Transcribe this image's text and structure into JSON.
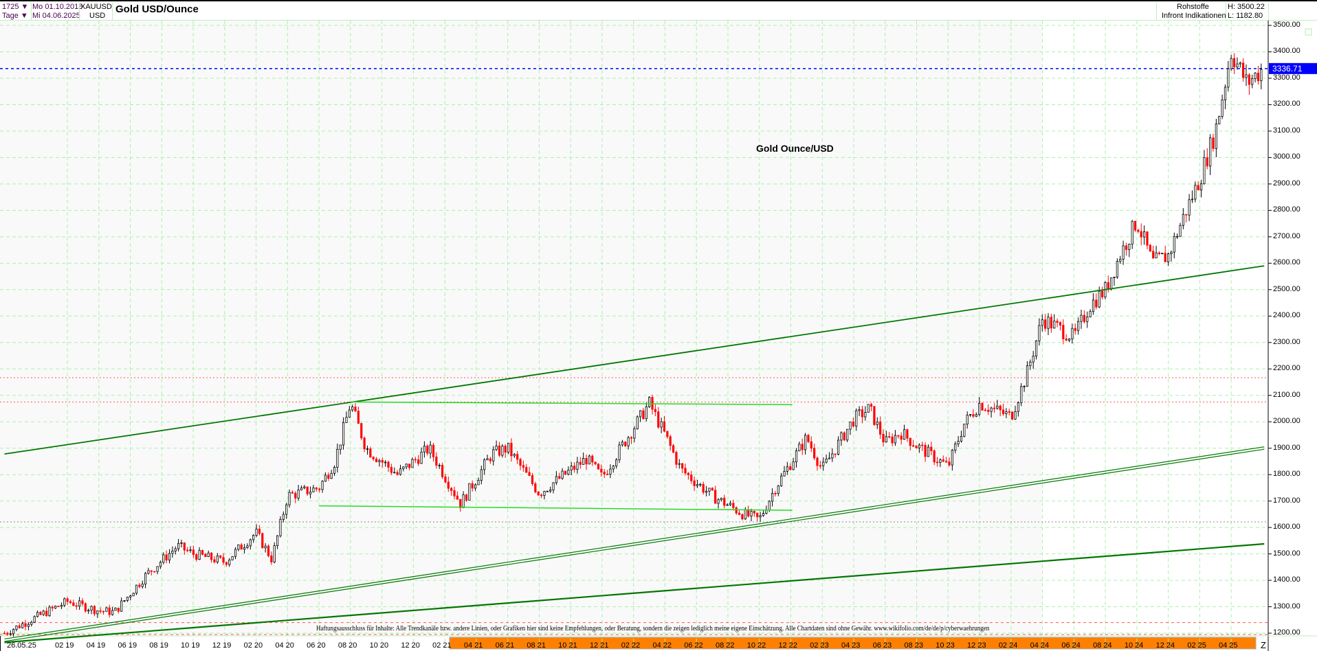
{
  "header": {
    "bars": "1725",
    "period": "Tage",
    "date_from": "Mo 01.10.2018",
    "date_to": "Mi 04.06.2025",
    "symbol": "XAUUSD",
    "currency": "USD",
    "title": "Gold USD/Ounce",
    "category": "Rohstoffe",
    "source": "Infront Indikationen",
    "high": "H: 3500.22",
    "low": "L: 1182.80",
    "dropdown_icon": "triangle-down"
  },
  "annotation": "Gold Ounce/USD",
  "disclaimer": "Haftungsausschluss für Inhalte: Alle Trendkanäle bzw. andere Linien, oder Grafiken hier sind keine Empfehlungen, oder Beratung, sondern die zeigen lediglich meine eigene Einschätzung. Alle Chartdaten sind ohne Gewähr.  www.wikifolio.com/de/de/p/cyberwaehrungen",
  "axis_corner": "Z",
  "colors": {
    "up": "#000000",
    "down": "#ff0000",
    "grid": "#aaf0aa",
    "trend": "#007700",
    "range": "#22dd22",
    "current": "#0000ff",
    "resistance": "#ff5555"
  },
  "chart_data": {
    "type": "candlestick",
    "title": "Gold USD/Ounce",
    "ylim": [
      1190,
      3520
    ],
    "grid": true,
    "y_ticks": [
      "3500.00",
      "3400.00",
      "3300.00",
      "3200.00",
      "3100.00",
      "3000.00",
      "2900.00",
      "2800.00",
      "2700.00",
      "2600.00",
      "2500.00",
      "2400.00",
      "2300.00",
      "2200.00",
      "2100.00",
      "2000.00",
      "1900.00",
      "1800.00",
      "1700.00",
      "1600.00",
      "1500.00",
      "1400.00",
      "1300.00",
      "1200.00"
    ],
    "x_ticks": [
      "26.05.25",
      "02 19",
      "04 19",
      "06 19",
      "08 19",
      "10 19",
      "12 19",
      "02 20",
      "04 20",
      "06 20",
      "08 20",
      "10 20",
      "12 20",
      "02 21",
      "04 21",
      "06 21",
      "08 21",
      "10 21",
      "12 21",
      "02 22",
      "04 22",
      "06 22",
      "08 22",
      "10 22",
      "12 22",
      "02 23",
      "04 23",
      "06 23",
      "08 23",
      "10 23",
      "12 23",
      "02 24",
      "04 24",
      "06 24",
      "08 24",
      "10 24",
      "12 24",
      "02 25",
      "04 25"
    ],
    "current_price": "3336.71",
    "high": 3500.22,
    "low": 1182.8,
    "series": [
      {
        "date": "2018-10",
        "close": 1200
      },
      {
        "date": "2018-12",
        "close": 1260
      },
      {
        "date": "2019-02",
        "close": 1320
      },
      {
        "date": "2019-04",
        "close": 1285
      },
      {
        "date": "2019-05",
        "close": 1280
      },
      {
        "date": "2019-07",
        "close": 1420
      },
      {
        "date": "2019-09",
        "close": 1530
      },
      {
        "date": "2019-10",
        "close": 1500
      },
      {
        "date": "2019-12",
        "close": 1470
      },
      {
        "date": "2020-02",
        "close": 1580
      },
      {
        "date": "2020-03",
        "close": 1480
      },
      {
        "date": "2020-04",
        "close": 1720
      },
      {
        "date": "2020-06",
        "close": 1750
      },
      {
        "date": "2020-07",
        "close": 1850
      },
      {
        "date": "2020-08",
        "close": 2070
      },
      {
        "date": "2020-09",
        "close": 1900
      },
      {
        "date": "2020-11",
        "close": 1800
      },
      {
        "date": "2021-01",
        "close": 1900
      },
      {
        "date": "2021-03",
        "close": 1690
      },
      {
        "date": "2021-05",
        "close": 1880
      },
      {
        "date": "2021-06",
        "close": 1900
      },
      {
        "date": "2021-08",
        "close": 1730
      },
      {
        "date": "2021-11",
        "close": 1860
      },
      {
        "date": "2021-12",
        "close": 1790
      },
      {
        "date": "2022-03",
        "close": 2070
      },
      {
        "date": "2022-04",
        "close": 1950
      },
      {
        "date": "2022-05",
        "close": 1820
      },
      {
        "date": "2022-07",
        "close": 1720
      },
      {
        "date": "2022-09",
        "close": 1650
      },
      {
        "date": "2022-10",
        "close": 1630
      },
      {
        "date": "2022-11",
        "close": 1750
      },
      {
        "date": "2023-01",
        "close": 1940
      },
      {
        "date": "2023-02",
        "close": 1820
      },
      {
        "date": "2023-04",
        "close": 2010
      },
      {
        "date": "2023-05",
        "close": 2050
      },
      {
        "date": "2023-06",
        "close": 1920
      },
      {
        "date": "2023-07",
        "close": 1960
      },
      {
        "date": "2023-08",
        "close": 1910
      },
      {
        "date": "2023-10",
        "close": 1830
      },
      {
        "date": "2023-11",
        "close": 1990
      },
      {
        "date": "2023-12",
        "close": 2070
      },
      {
        "date": "2024-02",
        "close": 2020
      },
      {
        "date": "2024-03",
        "close": 2180
      },
      {
        "date": "2024-04",
        "close": 2390
      },
      {
        "date": "2024-06",
        "close": 2320
      },
      {
        "date": "2024-07",
        "close": 2440
      },
      {
        "date": "2024-08",
        "close": 2500
      },
      {
        "date": "2024-09",
        "close": 2640
      },
      {
        "date": "2024-10",
        "close": 2760
      },
      {
        "date": "2024-11",
        "close": 2600
      },
      {
        "date": "2024-12",
        "close": 2630
      },
      {
        "date": "2025-01",
        "close": 2780
      },
      {
        "date": "2025-02",
        "close": 2920
      },
      {
        "date": "2025-03",
        "close": 3100
      },
      {
        "date": "2025-04",
        "close": 3400
      },
      {
        "date": "2025-05",
        "close": 3280
      },
      {
        "date": "2025-06",
        "close": 3336.71
      }
    ],
    "trendlines": [
      {
        "kind": "upper-channel",
        "from": [
          "2018-10",
          1878
        ],
        "to": [
          "2025-06",
          2590
        ]
      },
      {
        "kind": "middle-channel-double",
        "from": [
          "2018-10",
          1173
        ],
        "to": [
          "2025-06",
          1900
        ]
      },
      {
        "kind": "lower-channel",
        "from": [
          "2018-10",
          1165
        ],
        "to": [
          "2025-06",
          1538
        ]
      },
      {
        "kind": "range-top",
        "from": [
          "2020-08",
          2075
        ],
        "to": [
          "2022-12",
          2065
        ]
      },
      {
        "kind": "range-bottom",
        "from": [
          "2020-06",
          1682
        ],
        "to": [
          "2022-12",
          1665
        ]
      }
    ],
    "horizontal_levels": [
      {
        "value": 3336.71,
        "style": "blue-dashed"
      },
      {
        "value": 2167,
        "style": "red-dotted"
      },
      {
        "value": 2075,
        "style": "red-dotted"
      },
      {
        "value": 1621,
        "style": "gray-dotted"
      },
      {
        "value": 1240,
        "style": "red-dashed"
      },
      {
        "value": 1195,
        "style": "red-dashed"
      }
    ]
  }
}
